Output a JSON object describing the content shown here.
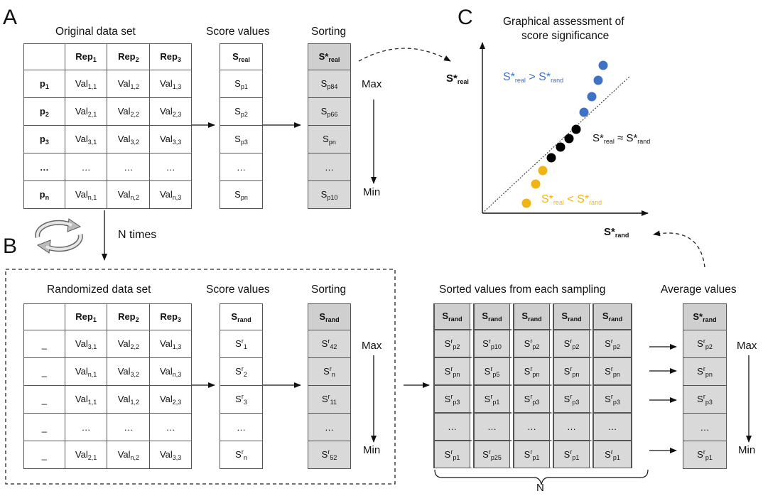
{
  "panels": {
    "a_letter": "A",
    "b_letter": "B",
    "c_letter": "C"
  },
  "panel_a": {
    "table_title": "Original data set",
    "score_title": "Score values",
    "sorting_title": "Sorting",
    "rep_base": "Rep",
    "rep_subs": [
      "1",
      "2",
      "3"
    ],
    "row_labels": [
      {
        "base": "p",
        "sub": "1"
      },
      {
        "base": "p",
        "sub": "2"
      },
      {
        "base": "p",
        "sub": "3"
      },
      {
        "base": "…",
        "sub": ""
      },
      {
        "base": "p",
        "sub": "n"
      }
    ],
    "cells": [
      [
        "1,1",
        "1,2",
        "1,3"
      ],
      [
        "2,1",
        "2,2",
        "2,3"
      ],
      [
        "3,1",
        "3,2",
        "3,3"
      ],
      [
        "…",
        "…",
        "…"
      ],
      [
        "n,1",
        "n,2",
        "n,3"
      ]
    ],
    "val_base": "Val",
    "score_header": {
      "base": "S",
      "sub": "real"
    },
    "score_cells": [
      {
        "base": "S",
        "sub": "p1"
      },
      {
        "base": "S",
        "sub": "p2"
      },
      {
        "base": "S",
        "sub": "p3"
      },
      {
        "base": "…",
        "sub": ""
      },
      {
        "base": "S",
        "sub": "pn"
      }
    ],
    "sort_header": {
      "base": "S*",
      "sub": "real"
    },
    "sort_cells": [
      {
        "base": "S",
        "sub": "p84"
      },
      {
        "base": "S",
        "sub": "p66"
      },
      {
        "base": "S",
        "sub": "pn"
      },
      {
        "base": "…",
        "sub": ""
      },
      {
        "base": "S",
        "sub": "p10"
      }
    ],
    "max_label": "Max",
    "min_label": "Min"
  },
  "n_times_label": "N times",
  "panel_b": {
    "table_title": "Randomized data set",
    "score_title": "Score values",
    "sorting_title": "Sorting",
    "row_labels": [
      "_",
      "_",
      "_",
      "_",
      "_"
    ],
    "cells": [
      [
        "3,1",
        "2,2",
        "1,3"
      ],
      [
        "n,1",
        "3,2",
        "n,3"
      ],
      [
        "1,1",
        "1,2",
        "2,3"
      ],
      [
        "…",
        "…",
        "…"
      ],
      [
        "2,1",
        "n,2",
        "3,3"
      ]
    ],
    "score_header": {
      "base": "S",
      "sub": "rand"
    },
    "score_cells": [
      {
        "sup": "r",
        "sub": "1"
      },
      {
        "sup": "r",
        "sub": "2"
      },
      {
        "sup": "r",
        "sub": "3"
      },
      {
        "sup": "",
        "sub": "",
        "dots": "…"
      },
      {
        "sup": "r",
        "sub": "n"
      }
    ],
    "sort_header": {
      "base": "S",
      "sub": "rand"
    },
    "sort_cells": [
      {
        "sup": "r",
        "sub": "42"
      },
      {
        "sup": "r",
        "sub": "n"
      },
      {
        "sup": "r",
        "sub": "11"
      },
      {
        "sup": "",
        "sub": "",
        "dots": "…"
      },
      {
        "sup": "r",
        "sub": "52"
      }
    ],
    "max_label": "Max",
    "min_label": "Min",
    "sampling_title": "Sorted values from each sampling",
    "average_title": "Average values",
    "sampling_header": {
      "base": "S",
      "sub": "rand"
    },
    "sampling_columns": [
      [
        "p2",
        "pn",
        "p3",
        "…",
        "p1"
      ],
      [
        "p10",
        "p5",
        "p1",
        "…",
        "p25"
      ],
      [
        "p2",
        "pn",
        "p3",
        "…",
        "p1"
      ],
      [
        "p2",
        "pn",
        "p3",
        "…",
        "p1"
      ],
      [
        "p2",
        "pn",
        "p3",
        "…",
        "p1"
      ]
    ],
    "average_header": {
      "base": "S*",
      "sub": "rand"
    },
    "average_cells": [
      "p2",
      "pn",
      "p3",
      "…",
      "p1"
    ],
    "n_brace_label": "N",
    "avg_max_label": "Max",
    "avg_min_label": "Min"
  },
  "panel_c": {
    "title_line1": "Graphical assessment of",
    "title_line2": "score significance",
    "y_axis": {
      "base": "S*",
      "sub": "real"
    },
    "x_axis": {
      "base": "S*",
      "sub": "rand"
    },
    "blue_label": {
      "a": "S*",
      "a_sub": "real",
      "op": " > ",
      "b": "S*",
      "b_sub": "rand"
    },
    "mid_label": {
      "a": "S*",
      "a_sub": "real",
      "op": " ≈ ",
      "b": "S*",
      "b_sub": "rand"
    },
    "yellow_label": {
      "a": "S*",
      "a_sub": "real",
      "op": " < ",
      "b": "S*",
      "b_sub": "rand"
    },
    "colors": {
      "blue": "#3f72c4",
      "black": "#000000",
      "yellow": "#efb416"
    }
  }
}
